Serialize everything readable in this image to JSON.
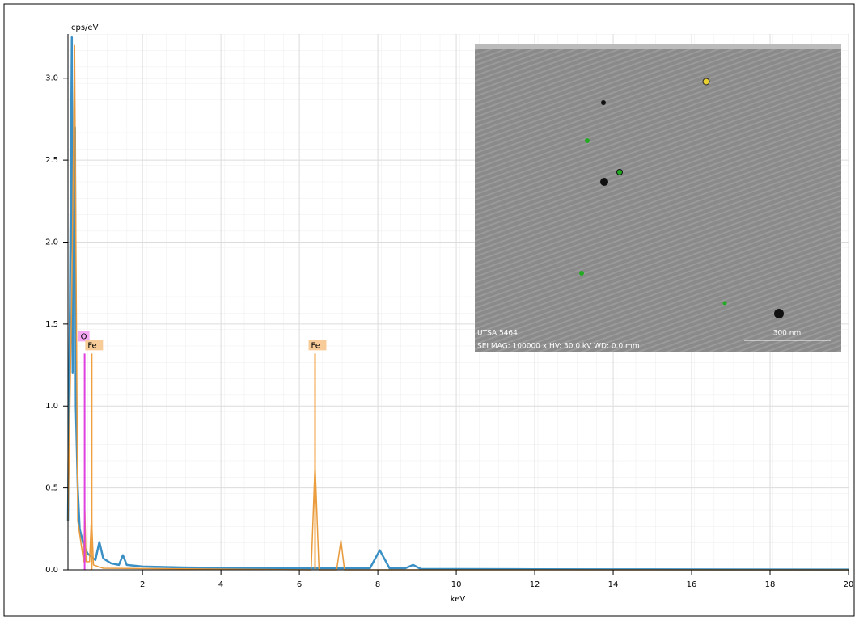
{
  "chart_data": {
    "type": "line",
    "y_label": "cps/eV",
    "x_label": "keV",
    "xlim": [
      0.1,
      20
    ],
    "ylim": [
      0,
      3.27
    ],
    "xticks": [
      2,
      4,
      6,
      8,
      10,
      12,
      14,
      16,
      18,
      20
    ],
    "yticks": [
      {
        "value": 0,
        "label": "0.0"
      },
      {
        "value": 0.5,
        "label": "0.5"
      },
      {
        "value": 1,
        "label": "1.0"
      },
      {
        "value": 1.5,
        "label": "1.5"
      },
      {
        "value": 2,
        "label": "2.0"
      },
      {
        "value": 2.5,
        "label": "2.5"
      },
      {
        "value": 3,
        "label": "3.0"
      }
    ],
    "grid": true,
    "series": [
      {
        "color": "#3a8fc4",
        "x": [
          0.1,
          0.15,
          0.2,
          0.22,
          0.25,
          0.28,
          0.3,
          0.35,
          0.4,
          0.5,
          0.6,
          0.8,
          0.9,
          1.0,
          1.2,
          1.4,
          1.5,
          1.6,
          2,
          3,
          4,
          5,
          6,
          7,
          7.8,
          8.05,
          8.3,
          8.7,
          8.9,
          9.1,
          10,
          12,
          15,
          20
        ],
        "values": [
          0.3,
          1.6,
          3.25,
          1.2,
          2.2,
          2.7,
          1.0,
          0.5,
          0.25,
          0.15,
          0.1,
          0.06,
          0.17,
          0.07,
          0.04,
          0.03,
          0.09,
          0.03,
          0.02,
          0.015,
          0.012,
          0.01,
          0.01,
          0.01,
          0.01,
          0.12,
          0.01,
          0.01,
          0.03,
          0.005,
          0.005,
          0.004,
          0.003,
          0.002
        ]
      },
      {
        "color": "#e89a3c",
        "x": [
          0.1,
          0.2,
          0.27,
          0.35,
          0.5,
          0.53,
          0.56,
          0.65,
          0.7,
          0.75,
          1,
          6.3,
          6.4,
          6.5,
          6.95,
          7.06,
          7.15,
          8,
          20
        ],
        "values": [
          0.3,
          1.7,
          3.2,
          0.3,
          0.05,
          0.36,
          0.05,
          0.05,
          0.33,
          0.03,
          0.01,
          0,
          0.65,
          0,
          0,
          0.18,
          0,
          0,
          0
        ]
      }
    ],
    "markers": [
      {
        "label": "O",
        "x": 0.525,
        "height": 1.32,
        "color": "#e040e0",
        "box": "#f4a8f4"
      },
      {
        "label": "Fe",
        "x": 0.705,
        "height": 1.32,
        "color": "#f0a040",
        "box": "#f8cc98"
      },
      {
        "label": "Fe",
        "x": 6.4,
        "height": 1.32,
        "color": "#f0a040",
        "box": "#f8cc98"
      }
    ],
    "inset": {
      "labels": [
        "UTSA 5464",
        "SEI  MAG: 100000 x  HV: 30.0 kV  WD: 0.0 mm",
        "300 nm"
      ]
    }
  }
}
